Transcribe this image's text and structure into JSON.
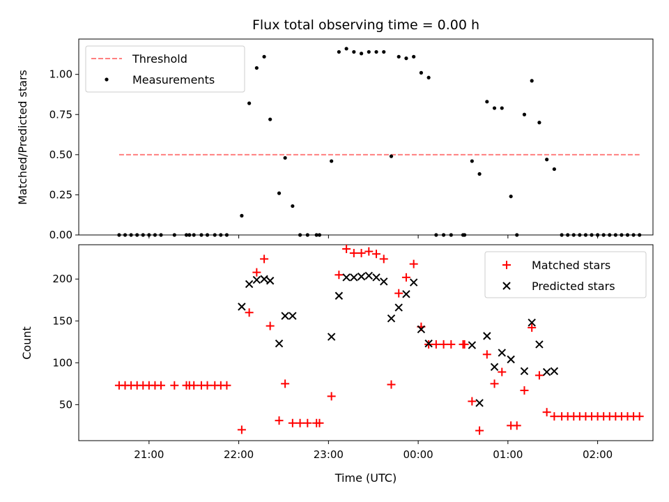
{
  "chart_data": [
    {
      "type": "scatter",
      "title": "Flux total observing time = 0.00 h",
      "xlabel": "",
      "ylabel": "Matched/Predicted stars",
      "ylim": [
        0,
        1.22
      ],
      "yticks": [
        "0.00",
        "0.25",
        "0.50",
        "0.75",
        "1.00"
      ],
      "xticks": [
        "21:00",
        "22:00",
        "23:00",
        "00:00",
        "01:00",
        "02:00"
      ],
      "legend_position": "top-left",
      "threshold": {
        "name": "Threshold",
        "value": 0.5,
        "x_start": "20:40",
        "x_end": "02:28",
        "color": "#ff7f7f"
      },
      "series": [
        {
          "name": "Measurements",
          "color": "#000000",
          "points": [
            [
              "20:40",
              0
            ],
            [
              "20:44",
              0
            ],
            [
              "20:48",
              0
            ],
            [
              "20:52",
              0
            ],
            [
              "20:56",
              0
            ],
            [
              "21:00",
              0
            ],
            [
              "21:04",
              0
            ],
            [
              "21:08",
              0
            ],
            [
              "21:17",
              0
            ],
            [
              "21:25",
              0
            ],
            [
              "21:27",
              0
            ],
            [
              "21:30",
              0
            ],
            [
              "21:35",
              0
            ],
            [
              "21:39",
              0
            ],
            [
              "21:44",
              0
            ],
            [
              "21:48",
              0
            ],
            [
              "21:52",
              0
            ],
            [
              "22:02",
              0.12
            ],
            [
              "22:07",
              0.82
            ],
            [
              "22:12",
              1.04
            ],
            [
              "22:17",
              1.11
            ],
            [
              "22:21",
              0.72
            ],
            [
              "22:27",
              0.26
            ],
            [
              "22:31",
              0.48
            ],
            [
              "22:36",
              0.18
            ],
            [
              "22:41",
              0
            ],
            [
              "22:46",
              0
            ],
            [
              "22:52",
              0
            ],
            [
              "22:54",
              0
            ],
            [
              "23:02",
              0.46
            ],
            [
              "23:07",
              1.14
            ],
            [
              "23:12",
              1.16
            ],
            [
              "23:17",
              1.14
            ],
            [
              "23:22",
              1.13
            ],
            [
              "23:27",
              1.14
            ],
            [
              "23:32",
              1.14
            ],
            [
              "23:37",
              1.14
            ],
            [
              "23:42",
              0.49
            ],
            [
              "23:47",
              1.11
            ],
            [
              "23:52",
              1.1
            ],
            [
              "23:57",
              1.11
            ],
            [
              "00:02",
              1.01
            ],
            [
              "00:07",
              0.98
            ],
            [
              "00:12",
              0
            ],
            [
              "00:17",
              0
            ],
            [
              "00:22",
              0
            ],
            [
              "00:30",
              0
            ],
            [
              "00:31",
              0
            ],
            [
              "00:36",
              0.46
            ],
            [
              "00:41",
              0.38
            ],
            [
              "00:46",
              0.83
            ],
            [
              "00:51",
              0.79
            ],
            [
              "00:56",
              0.79
            ],
            [
              "01:02",
              0.24
            ],
            [
              "01:06",
              0
            ],
            [
              "01:11",
              0.75
            ],
            [
              "01:16",
              0.96
            ],
            [
              "01:21",
              0.7
            ],
            [
              "01:26",
              0.47
            ],
            [
              "01:31",
              0.41
            ],
            [
              "01:36",
              0
            ],
            [
              "01:40",
              0
            ],
            [
              "01:44",
              0
            ],
            [
              "01:48",
              0
            ],
            [
              "01:52",
              0
            ],
            [
              "01:56",
              0
            ],
            [
              "02:00",
              0
            ],
            [
              "02:04",
              0
            ],
            [
              "02:08",
              0
            ],
            [
              "02:12",
              0
            ],
            [
              "02:16",
              0
            ],
            [
              "02:20",
              0
            ],
            [
              "02:24",
              0
            ],
            [
              "02:28",
              0
            ]
          ]
        }
      ]
    },
    {
      "type": "scatter",
      "title": "",
      "xlabel": "Time (UTC)",
      "ylabel": "Count",
      "ylim": [
        7,
        241
      ],
      "yticks": [
        "50",
        "100",
        "150",
        "200"
      ],
      "xticks": [
        "21:00",
        "22:00",
        "23:00",
        "00:00",
        "01:00",
        "02:00"
      ],
      "legend_position": "top-right",
      "series": [
        {
          "name": "Matched stars",
          "color": "#ff0000",
          "marker": "plus",
          "points": [
            [
              "20:40",
              73
            ],
            [
              "20:44",
              73
            ],
            [
              "20:48",
              73
            ],
            [
              "20:52",
              73
            ],
            [
              "20:56",
              73
            ],
            [
              "21:00",
              73
            ],
            [
              "21:04",
              73
            ],
            [
              "21:08",
              73
            ],
            [
              "21:17",
              73
            ],
            [
              "21:25",
              73
            ],
            [
              "21:27",
              73
            ],
            [
              "21:30",
              73
            ],
            [
              "21:35",
              73
            ],
            [
              "21:39",
              73
            ],
            [
              "21:44",
              73
            ],
            [
              "21:48",
              73
            ],
            [
              "21:52",
              73
            ],
            [
              "22:02",
              20
            ],
            [
              "22:07",
              160
            ],
            [
              "22:12",
              208
            ],
            [
              "22:17",
              224
            ],
            [
              "22:21",
              144
            ],
            [
              "22:27",
              31
            ],
            [
              "22:31",
              75
            ],
            [
              "22:36",
              28
            ],
            [
              "22:41",
              28
            ],
            [
              "22:46",
              28
            ],
            [
              "22:52",
              28
            ],
            [
              "22:54",
              28
            ],
            [
              "23:02",
              60
            ],
            [
              "23:07",
              205
            ],
            [
              "23:12",
              236
            ],
            [
              "23:17",
              231
            ],
            [
              "23:22",
              231
            ],
            [
              "23:27",
              233
            ],
            [
              "23:32",
              230
            ],
            [
              "23:37",
              224
            ],
            [
              "23:42",
              74
            ],
            [
              "23:47",
              183
            ],
            [
              "23:52",
              202
            ],
            [
              "23:57",
              218
            ],
            [
              "00:02",
              143
            ],
            [
              "00:07",
              122
            ],
            [
              "00:12",
              122
            ],
            [
              "00:17",
              122
            ],
            [
              "00:22",
              122
            ],
            [
              "00:30",
              122
            ],
            [
              "00:31",
              122
            ],
            [
              "00:36",
              54
            ],
            [
              "00:41",
              19
            ],
            [
              "00:46",
              110
            ],
            [
              "00:51",
              75
            ],
            [
              "00:56",
              89
            ],
            [
              "01:02",
              25
            ],
            [
              "01:06",
              25
            ],
            [
              "01:11",
              67
            ],
            [
              "01:16",
              142
            ],
            [
              "01:21",
              85
            ],
            [
              "01:26",
              41
            ],
            [
              "01:31",
              36
            ],
            [
              "01:36",
              36
            ],
            [
              "01:40",
              36
            ],
            [
              "01:44",
              36
            ],
            [
              "01:48",
              36
            ],
            [
              "01:52",
              36
            ],
            [
              "01:56",
              36
            ],
            [
              "02:00",
              36
            ],
            [
              "02:04",
              36
            ],
            [
              "02:08",
              36
            ],
            [
              "02:12",
              36
            ],
            [
              "02:16",
              36
            ],
            [
              "02:20",
              36
            ],
            [
              "02:24",
              36
            ],
            [
              "02:28",
              36
            ]
          ]
        },
        {
          "name": "Predicted stars",
          "color": "#000000",
          "marker": "x",
          "points": [
            [
              "22:02",
              167
            ],
            [
              "22:07",
              194
            ],
            [
              "22:12",
              199
            ],
            [
              "22:17",
              200
            ],
            [
              "22:21",
              198
            ],
            [
              "22:27",
              123
            ],
            [
              "22:31",
              156
            ],
            [
              "22:36",
              156
            ],
            [
              "23:02",
              131
            ],
            [
              "23:07",
              180
            ],
            [
              "23:12",
              202
            ],
            [
              "23:17",
              202
            ],
            [
              "23:22",
              203
            ],
            [
              "23:27",
              204
            ],
            [
              "23:32",
              202
            ],
            [
              "23:37",
              197
            ],
            [
              "23:42",
              153
            ],
            [
              "23:47",
              166
            ],
            [
              "23:52",
              182
            ],
            [
              "23:57",
              196
            ],
            [
              "00:02",
              140
            ],
            [
              "00:07",
              123
            ],
            [
              "00:36",
              121
            ],
            [
              "00:41",
              52
            ],
            [
              "00:46",
              132
            ],
            [
              "00:51",
              95
            ],
            [
              "00:56",
              112
            ],
            [
              "01:02",
              104
            ],
            [
              "01:11",
              90
            ],
            [
              "01:16",
              148
            ],
            [
              "01:21",
              122
            ],
            [
              "01:26",
              89
            ],
            [
              "01:31",
              90
            ]
          ]
        }
      ]
    }
  ]
}
